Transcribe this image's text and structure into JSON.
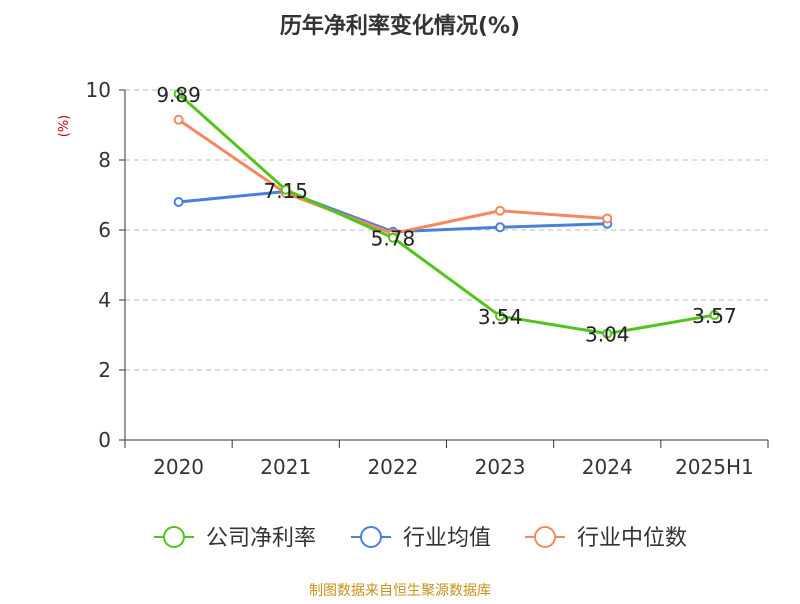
{
  "chart_data": {
    "type": "line",
    "title": "历年净利率变化情况(%)",
    "ylabel": "(%)",
    "xlabel": "",
    "categories": [
      "2020",
      "2021",
      "2022",
      "2023",
      "2024",
      "2025H1"
    ],
    "ylim": [
      0,
      10
    ],
    "yticks": [
      "0",
      "2",
      "4",
      "6",
      "8",
      "10"
    ],
    "grid": true,
    "legend_position": "bottom",
    "series": [
      {
        "name": "公司净利率",
        "color": "#52c41a",
        "values": [
          9.89,
          7.15,
          5.78,
          3.54,
          3.04,
          3.57
        ],
        "labels": [
          "9.89",
          "7.15",
          "5.78",
          "3.54",
          "3.04",
          "3.57"
        ]
      },
      {
        "name": "行业均值",
        "color": "#4a7fdc",
        "values": [
          6.8,
          7.1,
          5.95,
          6.08,
          6.18,
          null
        ]
      },
      {
        "name": "行业中位数",
        "color": "#f4895f",
        "values": [
          9.15,
          7.05,
          5.9,
          6.55,
          6.33,
          null
        ]
      }
    ]
  },
  "source": "制图数据来自恒生聚源数据库",
  "colors": {
    "title": "#333333",
    "axis": "#333333",
    "ylabel": "#c00000",
    "grid": "#bbbbbb",
    "source": "#c8911c"
  }
}
